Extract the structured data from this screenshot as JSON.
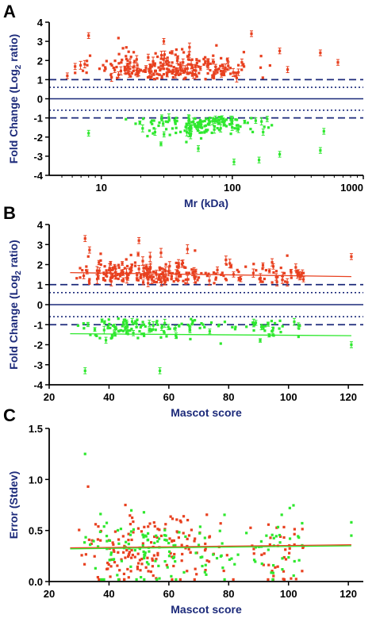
{
  "colors": {
    "up": "#e8401f",
    "down": "#2ee82e",
    "axis_text": "#1c2a7a",
    "axis_line": "#000000",
    "dashed": "#1c2a7a",
    "dotted": "#1c2a7a"
  },
  "chart_data": [
    {
      "panel": "A",
      "type": "scatter",
      "xscale": "log",
      "xlim": [
        4,
        1000
      ],
      "xticks": [
        10,
        100,
        1000
      ],
      "xtick_labels": [
        "10",
        "100",
        "1000"
      ],
      "ylim": [
        -4,
        4
      ],
      "yticks": [
        -4,
        -3,
        -2,
        -1,
        0,
        1,
        2,
        3,
        4
      ],
      "ytick_labels": [
        "-4",
        "-3",
        "-2",
        "-1",
        "0",
        "1",
        "2",
        "3",
        "4"
      ],
      "xlabel": "Mr (kDa)",
      "ylabel_main": "Fold Change (Log",
      "ylabel_sub": "2",
      "ylabel_tail": " ratio)",
      "reference_lines": {
        "solid": [
          0
        ],
        "dashed": [
          1,
          -1
        ],
        "dotted": [
          0.6,
          -0.6
        ]
      },
      "series": [
        {
          "color_key": "up",
          "points_summary": "upregulated proteins, y from 1.0 to 3.4",
          "highlight_points": [
            [
              8,
              3.3
            ],
            [
              30,
              3.0
            ],
            [
              140,
              3.4
            ],
            [
              470,
              2.4
            ],
            [
              640,
              1.9
            ],
            [
              230,
              2.5
            ],
            [
              5.5,
              1.2
            ]
          ]
        },
        {
          "color_key": "down",
          "points_summary": "downregulated proteins, y from -0.8 to -3.4",
          "highlight_points": [
            [
              8,
              -1.8
            ],
            [
              55,
              -2.6
            ],
            [
              103,
              -3.3
            ],
            [
              160,
              -3.2
            ],
            [
              230,
              -2.9
            ],
            [
              470,
              -2.7
            ],
            [
              500,
              -1.7
            ]
          ]
        }
      ],
      "n_up": 260,
      "n_down": 150
    },
    {
      "panel": "B",
      "type": "scatter",
      "xlim": [
        20,
        125
      ],
      "xticks": [
        20,
        40,
        60,
        80,
        100,
        120
      ],
      "xtick_labels": [
        "20",
        "40",
        "60",
        "80",
        "100",
        "120"
      ],
      "ylim": [
        -4,
        4
      ],
      "yticks": [
        -4,
        -3,
        -2,
        -1,
        0,
        1,
        2,
        3,
        4
      ],
      "ytick_labels": [
        "-4",
        "-3",
        "-2",
        "-1",
        "0",
        "1",
        "2",
        "3",
        "4"
      ],
      "xlabel": "Mascot score",
      "ylabel_main": "Fold Change (Log",
      "ylabel_sub": "2",
      "ylabel_tail": " ratio)",
      "reference_lines": {
        "solid": [
          0
        ],
        "dashed": [
          1,
          -1
        ],
        "dotted": [
          0.6,
          -0.6
        ]
      },
      "trend_lines": [
        {
          "color_key": "up",
          "x": [
            27,
            121
          ],
          "y": [
            1.6,
            1.4
          ]
        },
        {
          "color_key": "down",
          "x": [
            27,
            121
          ],
          "y": [
            -1.45,
            -1.55
          ]
        }
      ],
      "highlight_points": [
        [
          32,
          3.3
        ],
        [
          50,
          3.2
        ],
        [
          121,
          2.4
        ],
        [
          32,
          -3.3
        ],
        [
          57,
          -3.3
        ],
        [
          121,
          -2.0
        ]
      ],
      "n_up": 260,
      "n_down": 150
    },
    {
      "panel": "C",
      "type": "scatter",
      "xlim": [
        20,
        125
      ],
      "xticks": [
        20,
        40,
        60,
        80,
        100,
        120
      ],
      "xtick_labels": [
        "20",
        "40",
        "60",
        "80",
        "100",
        "120"
      ],
      "ylim": [
        0,
        1.5
      ],
      "yticks": [
        0.0,
        0.5,
        1.0,
        1.5
      ],
      "ytick_labels": [
        "0.0",
        "0.5",
        "1.0",
        "1.5"
      ],
      "xlabel": "Mascot score",
      "ylabel": "Error (Stdev)",
      "trend_lines": [
        {
          "color_key": "up",
          "x": [
            27,
            121
          ],
          "y": [
            0.33,
            0.36
          ]
        },
        {
          "color_key": "down",
          "x": [
            27,
            121
          ],
          "y": [
            0.32,
            0.35
          ]
        }
      ],
      "highlight_points": [
        [
          32,
          1.25
        ],
        [
          33,
          0.93
        ],
        [
          121,
          0.58
        ],
        [
          121,
          0.45
        ]
      ],
      "n_up": 200,
      "n_down": 150
    }
  ],
  "panel_labels": [
    "A",
    "B",
    "C"
  ]
}
